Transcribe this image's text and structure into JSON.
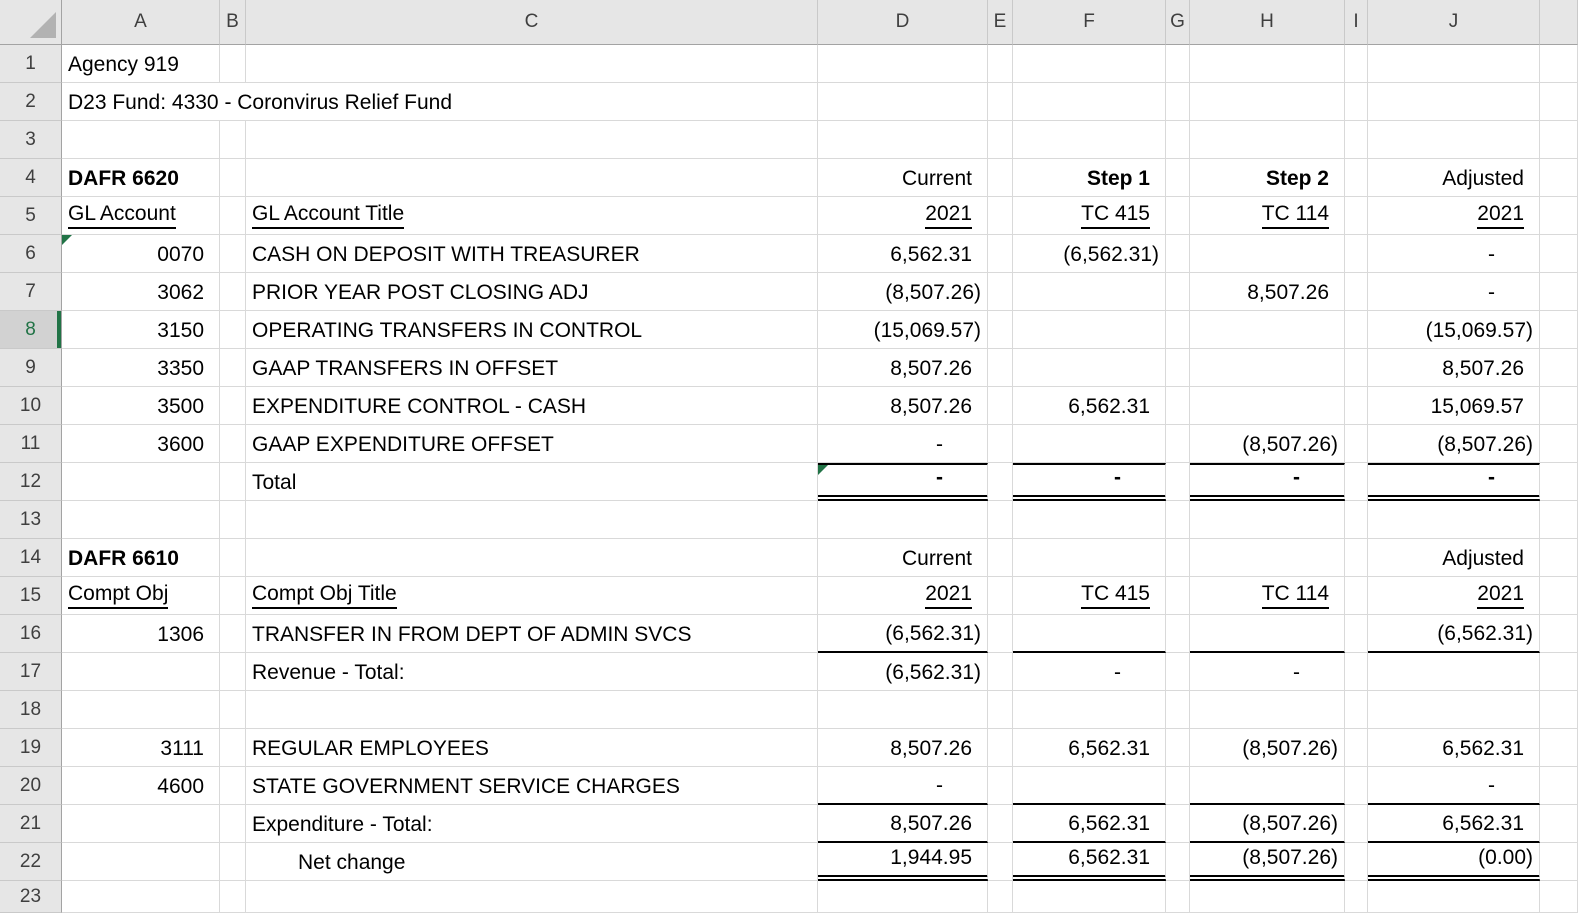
{
  "sheet": {
    "title_row_1": "Agency 919",
    "title_row_2": "D23 Fund: 4330 - Coronvirus Relief Fund",
    "column_headers": [
      "A",
      "B",
      "C",
      "D",
      "E",
      "F",
      "G",
      "H",
      "I",
      "J",
      ""
    ],
    "selection": {
      "selected_row": 8
    },
    "colors": {
      "accent_green": "#217346",
      "flag_green": "#217346",
      "header_bg": "#e6e6e6",
      "header_selected_bg": "#d2d2d2",
      "gridline": "#d9d9d9",
      "header_line": "#a3a3a3",
      "select_all_triangle": "#b2b2b2"
    },
    "rows": [
      {
        "n": "1",
        "cells": {
          "A": {
            "t": "Agency 919"
          }
        }
      },
      {
        "n": "2",
        "cells": {
          "A": {
            "t": "D23 Fund: 4330 - Coronvirus Relief Fund",
            "span": 3
          }
        }
      },
      {
        "n": "3",
        "cells": {}
      },
      {
        "n": "4",
        "cells": {
          "A": {
            "t": "DAFR 6620",
            "b": true
          },
          "D": {
            "t": "Current",
            "r": true
          },
          "F": {
            "t": "Step 1",
            "b": true,
            "r": true
          },
          "H": {
            "t": "Step 2",
            "b": true,
            "r": true
          },
          "J": {
            "t": "Adjusted",
            "r": true
          }
        }
      },
      {
        "n": "5",
        "cells": {
          "A": {
            "t": "GL Account",
            "u": true
          },
          "C": {
            "t": "GL Account Title",
            "u": true
          },
          "D": {
            "t": "2021",
            "u": true,
            "r": true
          },
          "F": {
            "t": "TC 415",
            "u": true,
            "r": true
          },
          "H": {
            "t": "TC 114",
            "u": true,
            "r": true
          },
          "J": {
            "t": "2021",
            "u": true,
            "r": true
          }
        }
      },
      {
        "n": "6",
        "cells": {
          "A": {
            "t": "0070",
            "n": true,
            "f": true
          },
          "C": {
            "t": "CASH ON DEPOSIT WITH TREASURER"
          },
          "D": {
            "t": "6,562.31",
            "n": true
          },
          "F": {
            "t": "(6,562.31)",
            "n": true
          },
          "J": {
            "t": "-",
            "n": true
          }
        }
      },
      {
        "n": "7",
        "cells": {
          "A": {
            "t": "3062",
            "n": true
          },
          "C": {
            "t": "PRIOR YEAR POST CLOSING ADJ"
          },
          "D": {
            "t": "(8,507.26)",
            "n": true
          },
          "H": {
            "t": "8,507.26",
            "n": true
          },
          "J": {
            "t": "-",
            "n": true
          }
        }
      },
      {
        "n": "8",
        "cells": {
          "A": {
            "t": "3150",
            "n": true
          },
          "C": {
            "t": "OPERATING TRANSFERS IN CONTROL"
          },
          "D": {
            "t": "(15,069.57)",
            "n": true
          },
          "J": {
            "t": "(15,069.57)",
            "n": true
          }
        }
      },
      {
        "n": "9",
        "cells": {
          "A": {
            "t": "3350",
            "n": true
          },
          "C": {
            "t": "GAAP TRANSFERS IN OFFSET"
          },
          "D": {
            "t": "8,507.26",
            "n": true
          },
          "J": {
            "t": "8,507.26",
            "n": true
          }
        }
      },
      {
        "n": "10",
        "cells": {
          "A": {
            "t": "3500",
            "n": true
          },
          "C": {
            "t": "EXPENDITURE CONTROL - CASH"
          },
          "D": {
            "t": "8,507.26",
            "n": true
          },
          "F": {
            "t": "6,562.31",
            "n": true
          },
          "J": {
            "t": "15,069.57",
            "n": true
          }
        }
      },
      {
        "n": "11",
        "cells": {
          "A": {
            "t": "3600",
            "n": true
          },
          "C": {
            "t": "GAAP EXPENDITURE OFFSET"
          },
          "D": {
            "t": "-",
            "n": true
          },
          "H": {
            "t": "(8,507.26)",
            "n": true
          },
          "J": {
            "t": "(8,507.26)",
            "n": true
          }
        }
      },
      {
        "n": "12",
        "cells": {
          "C": {
            "t": "Total"
          },
          "D": {
            "t": "-",
            "n": true,
            "b": true,
            "bt": true,
            "bbd": true,
            "f": true
          },
          "F": {
            "t": "-",
            "n": true,
            "b": true,
            "bt": true,
            "bbd": true
          },
          "H": {
            "t": "-",
            "n": true,
            "b": true,
            "bt": true,
            "bbd": true
          },
          "J": {
            "t": "-",
            "n": true,
            "b": true,
            "bt": true,
            "bbd": true
          }
        }
      },
      {
        "n": "13",
        "cells": {}
      },
      {
        "n": "14",
        "cells": {
          "A": {
            "t": "DAFR 6610",
            "b": true
          },
          "D": {
            "t": "Current",
            "r": true
          },
          "J": {
            "t": "Adjusted",
            "r": true
          }
        }
      },
      {
        "n": "15",
        "cells": {
          "A": {
            "t": "Compt Obj",
            "u": true
          },
          "C": {
            "t": "Compt Obj Title",
            "u": true
          },
          "D": {
            "t": "2021",
            "u": true,
            "r": true
          },
          "F": {
            "t": "TC 415",
            "u": true,
            "r": true
          },
          "H": {
            "t": "TC 114",
            "u": true,
            "r": true
          },
          "J": {
            "t": "2021",
            "u": true,
            "r": true
          }
        }
      },
      {
        "n": "16",
        "cells": {
          "A": {
            "t": "1306",
            "n": true
          },
          "C": {
            "t": "TRANSFER IN FROM DEPT OF ADMIN SVCS"
          },
          "D": {
            "t": "(6,562.31)",
            "n": true,
            "bb": true
          },
          "F": {
            "bb": true
          },
          "H": {
            "bb": true
          },
          "J": {
            "t": "(6,562.31)",
            "n": true,
            "bb": true
          }
        }
      },
      {
        "n": "17",
        "cells": {
          "C": {
            "t": "Revenue - Total:"
          },
          "D": {
            "t": "(6,562.31)",
            "n": true
          },
          "F": {
            "t": "-",
            "n": true
          },
          "H": {
            "t": "-",
            "n": true
          }
        }
      },
      {
        "n": "18",
        "cells": {}
      },
      {
        "n": "19",
        "cells": {
          "A": {
            "t": "3111",
            "n": true
          },
          "C": {
            "t": "REGULAR EMPLOYEES"
          },
          "D": {
            "t": "8,507.26",
            "n": true
          },
          "F": {
            "t": "6,562.31",
            "n": true
          },
          "H": {
            "t": "(8,507.26)",
            "n": true
          },
          "J": {
            "t": "6,562.31",
            "n": true
          }
        }
      },
      {
        "n": "20",
        "cells": {
          "A": {
            "t": "4600",
            "n": true
          },
          "C": {
            "t": "STATE GOVERNMENT SERVICE CHARGES"
          },
          "D": {
            "t": "-",
            "n": true,
            "bb": true
          },
          "F": {
            "bb": true
          },
          "H": {
            "bb": true
          },
          "J": {
            "t": "-",
            "n": true,
            "bb": true
          }
        }
      },
      {
        "n": "21",
        "cells": {
          "C": {
            "t": "Expenditure - Total:"
          },
          "D": {
            "t": "8,507.26",
            "n": true,
            "bb": true
          },
          "F": {
            "t": "6,562.31",
            "n": true,
            "bb": true
          },
          "H": {
            "t": "(8,507.26)",
            "n": true,
            "bb": true
          },
          "J": {
            "t": "6,562.31",
            "n": true,
            "bb": true
          }
        }
      },
      {
        "n": "22",
        "cells": {
          "C": {
            "t": "Net change",
            "i": true
          },
          "D": {
            "t": "1,944.95",
            "n": true,
            "bbd": true
          },
          "F": {
            "t": "6,562.31",
            "n": true,
            "bbd": true
          },
          "H": {
            "t": "(8,507.26)",
            "n": true,
            "bbd": true
          },
          "J": {
            "t": "(0.00)",
            "n": true,
            "bbd": true
          }
        }
      },
      {
        "n": "23",
        "cells": {}
      }
    ]
  }
}
